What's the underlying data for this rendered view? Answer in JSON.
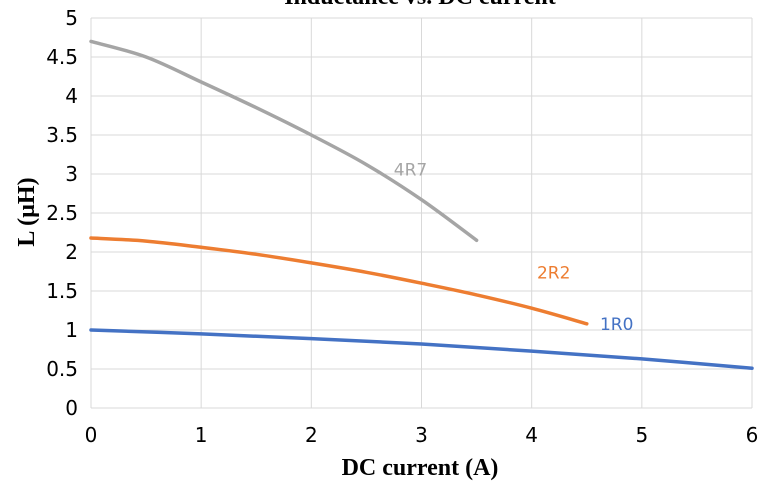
{
  "chart_data": {
    "type": "line",
    "title": "Inductance vs. DC current",
    "xlabel": "DC current (A)",
    "ylabel": "L (µH)",
    "xlim": [
      0,
      6
    ],
    "ylim": [
      0,
      5
    ],
    "x_ticks": [
      "0",
      "1",
      "2",
      "3",
      "4",
      "5",
      "6"
    ],
    "y_ticks": [
      "0",
      "0.5",
      "1",
      "1.5",
      "2",
      "2.5",
      "3",
      "3.5",
      "4",
      "4.5",
      "5"
    ],
    "grid": true,
    "legend": "none",
    "series": [
      {
        "name": "1R0",
        "color": "#4472c4",
        "points": [
          [
            0,
            1.0
          ],
          [
            1,
            0.95
          ],
          [
            2,
            0.89
          ],
          [
            3,
            0.82
          ],
          [
            4,
            0.73
          ],
          [
            5,
            0.63
          ],
          [
            6,
            0.51
          ]
        ]
      },
      {
        "name": "2R2",
        "color": "#ed7d31",
        "points": [
          [
            0,
            2.18
          ],
          [
            0.5,
            2.14
          ],
          [
            1,
            2.06
          ],
          [
            1.5,
            1.97
          ],
          [
            2,
            1.86
          ],
          [
            2.5,
            1.74
          ],
          [
            3,
            1.6
          ],
          [
            3.5,
            1.45
          ],
          [
            4,
            1.28
          ],
          [
            4.5,
            1.08
          ]
        ]
      },
      {
        "name": "4R7",
        "color": "#a5a5a5",
        "points": [
          [
            0,
            4.7
          ],
          [
            0.5,
            4.5
          ],
          [
            1,
            4.18
          ],
          [
            1.5,
            3.85
          ],
          [
            2,
            3.5
          ],
          [
            2.5,
            3.12
          ],
          [
            3,
            2.67
          ],
          [
            3.5,
            2.15
          ]
        ]
      }
    ]
  }
}
